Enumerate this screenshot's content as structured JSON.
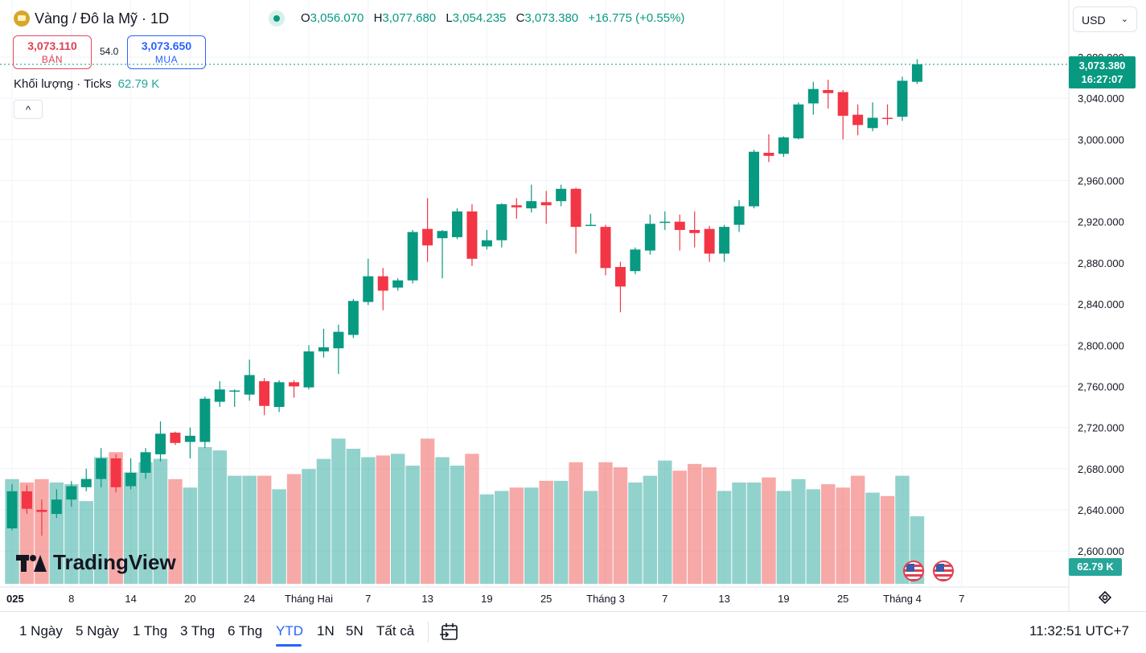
{
  "header": {
    "symbol_title": "Vàng / Đô la Mỹ · 1D",
    "ohlc": {
      "o_label": "O",
      "o_value": "3,056.070",
      "h_label": "H",
      "h_value": "3,077.680",
      "l_label": "L",
      "l_value": "3,054.235",
      "c_label": "C",
      "c_value": "3,073.380",
      "change": "+16.775 (+0.55%)"
    },
    "sell": {
      "price": "3,073.110",
      "label": "BÁN"
    },
    "buy": {
      "price": "3,073.650",
      "label": "MUA"
    },
    "spread": "54.0",
    "volume_legend": {
      "label": "Khối lượng · Ticks",
      "value": "62.79 K"
    },
    "collapse_symbol": "^",
    "currency": "USD"
  },
  "price_scale": {
    "ticks": [
      "3,080.000",
      "3,040.000",
      "3,000.000",
      "2,960.000",
      "2,920.000",
      "2,880.000",
      "2,840.000",
      "2,800.000",
      "2,760.000",
      "2,720.000",
      "2,680.000",
      "2,640.000",
      "2,600.000"
    ],
    "last_price_tag": "3,073.380",
    "countdown": "16:27:07",
    "volume_tag": "62.79 K"
  },
  "time_axis": {
    "labels": [
      "025",
      "8",
      "14",
      "20",
      "24",
      "Tháng Hai",
      "7",
      "13",
      "19",
      "25",
      "Tháng 3",
      "7",
      "13",
      "19",
      "25",
      "Tháng 4",
      "7"
    ]
  },
  "watermark": "TradingView",
  "bottom_bar": {
    "ranges": [
      "1 Ngày",
      "5 Ngày",
      "1 Thg",
      "3 Thg",
      "6 Thg",
      "YTD",
      "1N",
      "5N",
      "Tất cả"
    ],
    "active_range": "YTD",
    "clock": "11:32:51 UTC+7"
  },
  "colors": {
    "up": "#089981",
    "down": "#f23645",
    "vol_up": "#26a69a80",
    "vol_down": "#ef535080",
    "grid": "#f0f3fa"
  },
  "chart_data": {
    "type": "candlestick",
    "interval": "1D",
    "ylim": [
      2580,
      3095
    ],
    "candles": [
      {
        "o": 2622,
        "h": 2665,
        "l": 2620,
        "c": 2658
      },
      {
        "o": 2658,
        "h": 2664,
        "l": 2636,
        "c": 2641
      },
      {
        "o": 2640,
        "h": 2650,
        "l": 2615,
        "c": 2638
      },
      {
        "o": 2636,
        "h": 2660,
        "l": 2632,
        "c": 2650
      },
      {
        "o": 2650,
        "h": 2668,
        "l": 2643,
        "c": 2663
      },
      {
        "o": 2662,
        "h": 2680,
        "l": 2658,
        "c": 2670
      },
      {
        "o": 2670,
        "h": 2700,
        "l": 2662,
        "c": 2690
      },
      {
        "o": 2690,
        "h": 2694,
        "l": 2657,
        "c": 2662
      },
      {
        "o": 2663,
        "h": 2690,
        "l": 2660,
        "c": 2676
      },
      {
        "o": 2676,
        "h": 2700,
        "l": 2670,
        "c": 2696
      },
      {
        "o": 2694,
        "h": 2726,
        "l": 2687,
        "c": 2714
      },
      {
        "o": 2715,
        "h": 2716,
        "l": 2703,
        "c": 2705
      },
      {
        "o": 2706,
        "h": 2720,
        "l": 2690,
        "c": 2712
      },
      {
        "o": 2706,
        "h": 2750,
        "l": 2700,
        "c": 2748
      },
      {
        "o": 2745,
        "h": 2765,
        "l": 2740,
        "c": 2757
      },
      {
        "o": 2755,
        "h": 2757,
        "l": 2740,
        "c": 2756
      },
      {
        "o": 2752,
        "h": 2786,
        "l": 2746,
        "c": 2771
      },
      {
        "o": 2765,
        "h": 2768,
        "l": 2732,
        "c": 2741
      },
      {
        "o": 2740,
        "h": 2766,
        "l": 2735,
        "c": 2764
      },
      {
        "o": 2764,
        "h": 2766,
        "l": 2749,
        "c": 2760
      },
      {
        "o": 2759,
        "h": 2800,
        "l": 2757,
        "c": 2794
      },
      {
        "o": 2794,
        "h": 2816,
        "l": 2788,
        "c": 2798
      },
      {
        "o": 2797,
        "h": 2820,
        "l": 2772,
        "c": 2813
      },
      {
        "o": 2810,
        "h": 2845,
        "l": 2807,
        "c": 2843
      },
      {
        "o": 2842,
        "h": 2884,
        "l": 2839,
        "c": 2867
      },
      {
        "o": 2867,
        "h": 2875,
        "l": 2834,
        "c": 2853
      },
      {
        "o": 2856,
        "h": 2865,
        "l": 2853,
        "c": 2863
      },
      {
        "o": 2863,
        "h": 2912,
        "l": 2860,
        "c": 2910
      },
      {
        "o": 2913,
        "h": 2943,
        "l": 2881,
        "c": 2897
      },
      {
        "o": 2904,
        "h": 2912,
        "l": 2865,
        "c": 2911
      },
      {
        "o": 2905,
        "h": 2933,
        "l": 2903,
        "c": 2930
      },
      {
        "o": 2930,
        "h": 2937,
        "l": 2877,
        "c": 2884
      },
      {
        "o": 2896,
        "h": 2912,
        "l": 2893,
        "c": 2902
      },
      {
        "o": 2902,
        "h": 2938,
        "l": 2895,
        "c": 2937
      },
      {
        "o": 2936,
        "h": 2943,
        "l": 2923,
        "c": 2934
      },
      {
        "o": 2933,
        "h": 2956,
        "l": 2929,
        "c": 2940
      },
      {
        "o": 2939,
        "h": 2950,
        "l": 2918,
        "c": 2936
      },
      {
        "o": 2940,
        "h": 2956,
        "l": 2935,
        "c": 2952
      },
      {
        "o": 2952,
        "h": 2953,
        "l": 2889,
        "c": 2915
      },
      {
        "o": 2917,
        "h": 2928,
        "l": 2917,
        "c": 2917
      },
      {
        "o": 2915,
        "h": 2917,
        "l": 2868,
        "c": 2875
      },
      {
        "o": 2876,
        "h": 2881,
        "l": 2832,
        "c": 2857
      },
      {
        "o": 2872,
        "h": 2895,
        "l": 2869,
        "c": 2893
      },
      {
        "o": 2892,
        "h": 2927,
        "l": 2888,
        "c": 2918
      },
      {
        "o": 2919,
        "h": 2930,
        "l": 2912,
        "c": 2920
      },
      {
        "o": 2920,
        "h": 2927,
        "l": 2892,
        "c": 2912
      },
      {
        "o": 2912,
        "h": 2930,
        "l": 2895,
        "c": 2909
      },
      {
        "o": 2913,
        "h": 2916,
        "l": 2881,
        "c": 2889
      },
      {
        "o": 2889,
        "h": 2917,
        "l": 2881,
        "c": 2915
      },
      {
        "o": 2917,
        "h": 2941,
        "l": 2910,
        "c": 2935
      },
      {
        "o": 2935,
        "h": 2990,
        "l": 2933,
        "c": 2988
      },
      {
        "o": 2987,
        "h": 3005,
        "l": 2978,
        "c": 2984
      },
      {
        "o": 2986,
        "h": 3003,
        "l": 2983,
        "c": 3002
      },
      {
        "o": 3001,
        "h": 3036,
        "l": 3000,
        "c": 3034
      },
      {
        "o": 3035,
        "h": 3056,
        "l": 3024,
        "c": 3049
      },
      {
        "o": 3048,
        "h": 3058,
        "l": 3030,
        "c": 3045
      },
      {
        "o": 3046,
        "h": 3048,
        "l": 3000,
        "c": 3023
      },
      {
        "o": 3024,
        "h": 3034,
        "l": 3004,
        "c": 3014
      },
      {
        "o": 3011,
        "h": 3036,
        "l": 3008,
        "c": 3021
      },
      {
        "o": 3021,
        "h": 3034,
        "l": 3014,
        "c": 3020
      },
      {
        "o": 3022,
        "h": 3061,
        "l": 3018,
        "c": 3057
      },
      {
        "o": 3056,
        "h": 3078,
        "l": 3054,
        "c": 3073
      }
    ],
    "volume": [
      0.62,
      0.6,
      0.62,
      0.6,
      0.59,
      0.49,
      0.75,
      0.78,
      0.66,
      0.72,
      0.74,
      0.62,
      0.57,
      0.81,
      0.79,
      0.64,
      0.64,
      0.64,
      0.56,
      0.65,
      0.68,
      0.74,
      0.86,
      0.8,
      0.75,
      0.76,
      0.77,
      0.7,
      0.86,
      0.75,
      0.7,
      0.77,
      0.53,
      0.55,
      0.57,
      0.57,
      0.61,
      0.61,
      0.72,
      0.55,
      0.72,
      0.69,
      0.6,
      0.64,
      0.73,
      0.67,
      0.71,
      0.69,
      0.55,
      0.6,
      0.6,
      0.63,
      0.55,
      0.62,
      0.56,
      0.59,
      0.57,
      0.64,
      0.54,
      0.52,
      0.64,
      0.4
    ],
    "volume_last": "62.79 K"
  }
}
